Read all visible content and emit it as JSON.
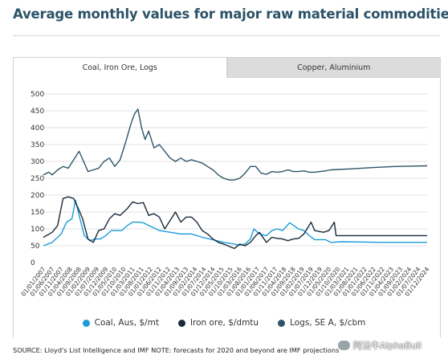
{
  "title": "Average monthly values for major raw material commodities",
  "tabs": [
    {
      "label": "Coal, Iron Ore, Logs",
      "active": true
    },
    {
      "label": "Copper, Aluminium",
      "active": false
    }
  ],
  "source": "SOURCE: Lloyd's List Intelligence and IMF NOTE: forecasts for 2020 and beyond are IMF projections",
  "watermark": "阿法牛AlphaBull",
  "chart_data": {
    "type": "line",
    "title": "",
    "xlabel": "",
    "ylabel": "",
    "ylim": [
      0,
      500
    ],
    "yticks": [
      0,
      50,
      100,
      150,
      200,
      250,
      300,
      350,
      400,
      450,
      500
    ],
    "grid": true,
    "legend": "bottom",
    "x_start": "2007-01",
    "x_end": "2024-12",
    "x_tick_labels": [
      "01/01/2007",
      "01/06/2007",
      "01/11/2007",
      "01/04/2008",
      "01/09/2008",
      "01/02/2009",
      "01/07/2009",
      "01/12/2009",
      "01/05/2010",
      "01/10/2010",
      "01/03/2011",
      "01/08/2011",
      "01/01/2012",
      "01/06/2012",
      "01/11/2012",
      "01/04/2013",
      "01/09/2013",
      "01/02/2014",
      "01/07/2014",
      "01/12/2014",
      "01/05/2015",
      "01/10/2015",
      "01/03/2016",
      "01/08/2016",
      "01/01/2017",
      "01/06/2017",
      "01/11/2017",
      "01/04/2018",
      "01/09/2018",
      "01/02/2019",
      "01/07/2019",
      "01/12/2019",
      "01/05/2020",
      "01/10/2020",
      "01/03/2021",
      "01/08/2021",
      "01/01/2022",
      "01/06/2022",
      "01/11/2022",
      "01/04/2023",
      "01/09/2023",
      "01/02/2024",
      "01/07/2024",
      "01/12/2024"
    ],
    "series": [
      {
        "name": "Coal, Aus, $/mt",
        "color": "#1b9cd8",
        "points": [
          [
            "2007-01",
            50
          ],
          [
            "2007-06",
            60
          ],
          [
            "2007-11",
            85
          ],
          [
            "2008-02",
            120
          ],
          [
            "2008-05",
            130
          ],
          [
            "2008-07",
            185
          ],
          [
            "2008-09",
            140
          ],
          [
            "2008-12",
            80
          ],
          [
            "2009-03",
            65
          ],
          [
            "2009-06",
            70
          ],
          [
            "2009-09",
            70
          ],
          [
            "2009-12",
            80
          ],
          [
            "2010-03",
            95
          ],
          [
            "2010-06",
            95
          ],
          [
            "2010-09",
            95
          ],
          [
            "2010-12",
            110
          ],
          [
            "2011-03",
            120
          ],
          [
            "2011-06",
            120
          ],
          [
            "2011-09",
            118
          ],
          [
            "2011-12",
            110
          ],
          [
            "2012-06",
            95
          ],
          [
            "2012-12",
            90
          ],
          [
            "2013-06",
            85
          ],
          [
            "2013-12",
            85
          ],
          [
            "2014-06",
            75
          ],
          [
            "2014-12",
            68
          ],
          [
            "2015-06",
            60
          ],
          [
            "2015-12",
            55
          ],
          [
            "2016-03",
            52
          ],
          [
            "2016-06",
            55
          ],
          [
            "2016-09",
            70
          ],
          [
            "2016-11",
            100
          ],
          [
            "2017-02",
            85
          ],
          [
            "2017-06",
            80
          ],
          [
            "2017-09",
            95
          ],
          [
            "2017-12",
            100
          ],
          [
            "2018-03",
            95
          ],
          [
            "2018-07",
            118
          ],
          [
            "2018-12",
            100
          ],
          [
            "2019-03",
            95
          ],
          [
            "2019-06",
            80
          ],
          [
            "2019-09",
            68
          ],
          [
            "2019-12",
            68
          ],
          [
            "2020-03",
            68
          ],
          [
            "2020-06",
            60
          ],
          [
            "2020-12",
            62
          ],
          [
            "2022-12",
            60
          ],
          [
            "2024-12",
            60
          ]
        ]
      },
      {
        "name": "Iron ore, $/dmtu",
        "color": "#1a2a3a",
        "points": [
          [
            "2007-01",
            75
          ],
          [
            "2007-06",
            90
          ],
          [
            "2007-09",
            110
          ],
          [
            "2007-12",
            190
          ],
          [
            "2008-03",
            195
          ],
          [
            "2008-06",
            190
          ],
          [
            "2008-09",
            155
          ],
          [
            "2008-11",
            130
          ],
          [
            "2009-02",
            70
          ],
          [
            "2009-05",
            60
          ],
          [
            "2009-08",
            95
          ],
          [
            "2009-11",
            100
          ],
          [
            "2010-02",
            130
          ],
          [
            "2010-05",
            145
          ],
          [
            "2010-08",
            140
          ],
          [
            "2010-12",
            160
          ],
          [
            "2011-03",
            180
          ],
          [
            "2011-06",
            175
          ],
          [
            "2011-09",
            178
          ],
          [
            "2011-12",
            140
          ],
          [
            "2012-03",
            145
          ],
          [
            "2012-06",
            135
          ],
          [
            "2012-09",
            100
          ],
          [
            "2012-12",
            125
          ],
          [
            "2013-03",
            150
          ],
          [
            "2013-06",
            120
          ],
          [
            "2013-09",
            135
          ],
          [
            "2013-12",
            135
          ],
          [
            "2014-03",
            120
          ],
          [
            "2014-06",
            95
          ],
          [
            "2014-09",
            85
          ],
          [
            "2014-12",
            70
          ],
          [
            "2015-03",
            60
          ],
          [
            "2015-06",
            55
          ],
          [
            "2015-12",
            42
          ],
          [
            "2016-03",
            55
          ],
          [
            "2016-06",
            50
          ],
          [
            "2016-09",
            60
          ],
          [
            "2016-12",
            80
          ],
          [
            "2017-02",
            90
          ],
          [
            "2017-06",
            60
          ],
          [
            "2017-09",
            75
          ],
          [
            "2017-12",
            72
          ],
          [
            "2018-03",
            70
          ],
          [
            "2018-06",
            65
          ],
          [
            "2018-09",
            70
          ],
          [
            "2018-12",
            72
          ],
          [
            "2019-03",
            85
          ],
          [
            "2019-07",
            120
          ],
          [
            "2019-09",
            95
          ],
          [
            "2019-12",
            92
          ],
          [
            "2020-02",
            90
          ],
          [
            "2020-05",
            95
          ],
          [
            "2020-08",
            120
          ],
          [
            "2020-09",
            80
          ],
          [
            "2024-12",
            80
          ]
        ]
      },
      {
        "name": "Logs, SE A, $/cbm",
        "color": "#2d5468",
        "points": [
          [
            "2007-01",
            260
          ],
          [
            "2007-04",
            268
          ],
          [
            "2007-06",
            260
          ],
          [
            "2007-09",
            275
          ],
          [
            "2007-12",
            285
          ],
          [
            "2008-03",
            280
          ],
          [
            "2008-06",
            305
          ],
          [
            "2008-09",
            330
          ],
          [
            "2008-12",
            295
          ],
          [
            "2009-02",
            270
          ],
          [
            "2009-05",
            275
          ],
          [
            "2009-08",
            280
          ],
          [
            "2009-11",
            300
          ],
          [
            "2010-02",
            310
          ],
          [
            "2010-05",
            285
          ],
          [
            "2010-08",
            305
          ],
          [
            "2010-11",
            355
          ],
          [
            "2011-02",
            410
          ],
          [
            "2011-04",
            440
          ],
          [
            "2011-06",
            455
          ],
          [
            "2011-08",
            400
          ],
          [
            "2011-10",
            365
          ],
          [
            "2011-12",
            390
          ],
          [
            "2012-03",
            340
          ],
          [
            "2012-06",
            350
          ],
          [
            "2012-09",
            330
          ],
          [
            "2012-12",
            310
          ],
          [
            "2013-03",
            300
          ],
          [
            "2013-06",
            310
          ],
          [
            "2013-09",
            300
          ],
          [
            "2013-12",
            305
          ],
          [
            "2014-03",
            300
          ],
          [
            "2014-06",
            295
          ],
          [
            "2014-09",
            285
          ],
          [
            "2014-12",
            275
          ],
          [
            "2015-03",
            260
          ],
          [
            "2015-06",
            250
          ],
          [
            "2015-09",
            245
          ],
          [
            "2015-12",
            245
          ],
          [
            "2016-03",
            250
          ],
          [
            "2016-06",
            265
          ],
          [
            "2016-09",
            285
          ],
          [
            "2016-12",
            285
          ],
          [
            "2017-03",
            265
          ],
          [
            "2017-06",
            262
          ],
          [
            "2017-09",
            270
          ],
          [
            "2017-12",
            268
          ],
          [
            "2018-03",
            270
          ],
          [
            "2018-06",
            275
          ],
          [
            "2018-09",
            270
          ],
          [
            "2018-12",
            270
          ],
          [
            "2019-03",
            272
          ],
          [
            "2019-06",
            268
          ],
          [
            "2019-09",
            268
          ],
          [
            "2019-12",
            270
          ],
          [
            "2020-03",
            272
          ],
          [
            "2020-06",
            275
          ],
          [
            "2021-06",
            278
          ],
          [
            "2022-06",
            282
          ],
          [
            "2023-06",
            285
          ],
          [
            "2024-12",
            287
          ]
        ]
      }
    ]
  }
}
